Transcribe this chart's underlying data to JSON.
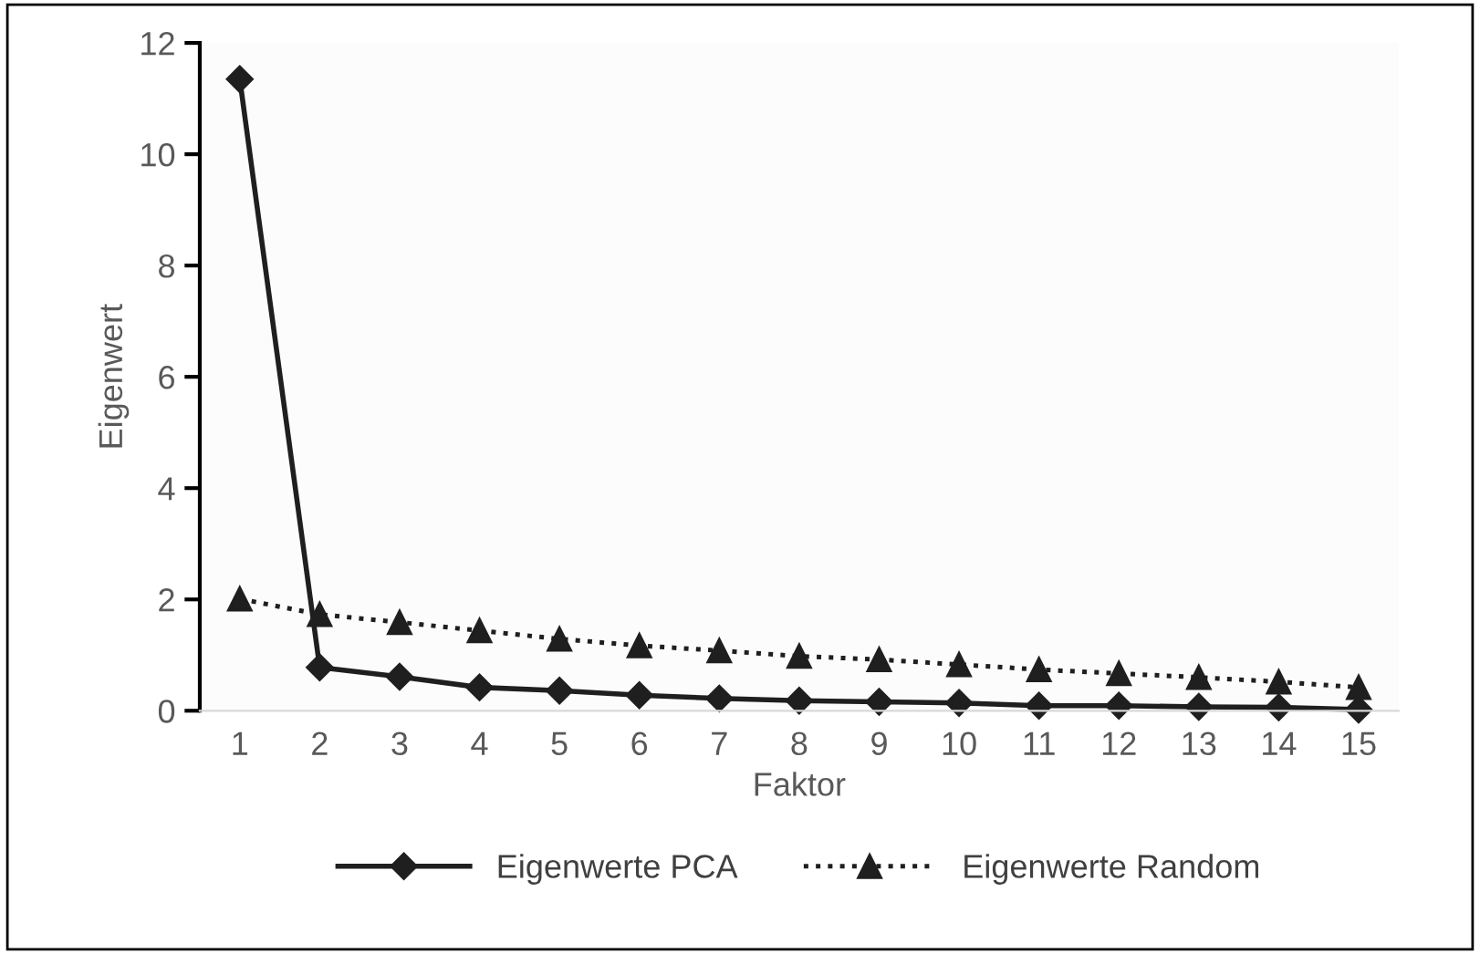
{
  "chart_data": {
    "type": "line",
    "xlabel": "Faktor",
    "ylabel": "Eigenwert",
    "categories": [
      "1",
      "2",
      "3",
      "4",
      "5",
      "6",
      "7",
      "8",
      "9",
      "10",
      "11",
      "12",
      "13",
      "14",
      "15"
    ],
    "series": [
      {
        "name": "Eigenwerte PCA",
        "color": "#1f1f1f",
        "marker": "diamond",
        "line_style": "solid",
        "values": [
          11.35,
          0.78,
          0.61,
          0.42,
          0.36,
          0.28,
          0.22,
          0.18,
          0.16,
          0.14,
          0.09,
          0.09,
          0.07,
          0.06,
          0.02
        ]
      },
      {
        "name": "Eigenwerte Random",
        "color": "#1f1f1f",
        "marker": "triangle",
        "line_style": "dotted",
        "values": [
          2.01,
          1.73,
          1.59,
          1.44,
          1.29,
          1.17,
          1.08,
          0.98,
          0.92,
          0.83,
          0.74,
          0.67,
          0.6,
          0.52,
          0.42
        ]
      }
    ],
    "ylim": [
      0,
      12
    ],
    "yticks": [
      0,
      2,
      4,
      6,
      8,
      10,
      12
    ],
    "grid": false,
    "legend": "bottom"
  }
}
